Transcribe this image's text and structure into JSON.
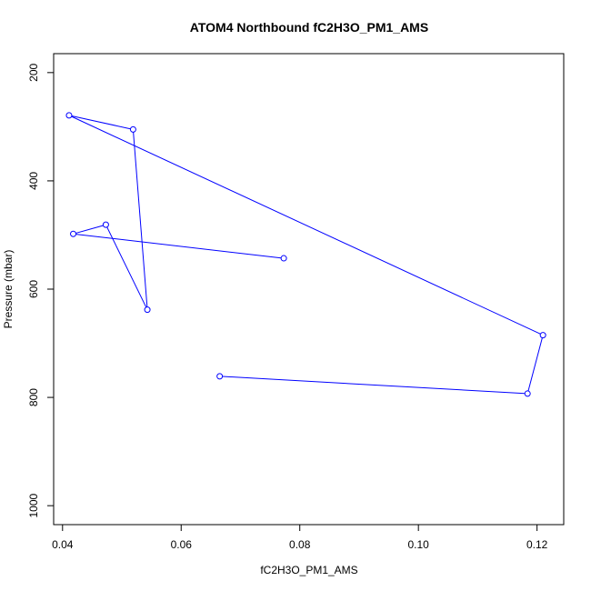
{
  "chart_data": {
    "type": "line",
    "title": "ATOM4 Northbound fC2H3O_PM1_AMS",
    "xlabel": "fC2H3O_PM1_AMS",
    "ylabel": "Pressure (mbar)",
    "xlim": [
      0.0385,
      0.1245
    ],
    "ylim": [
      1035,
      165
    ],
    "y_reversed": true,
    "grid": false,
    "x_ticks": [
      0.04,
      0.06,
      0.08,
      0.1,
      0.12
    ],
    "x_tick_labels": [
      "0.04",
      "0.06",
      "0.08",
      "0.10",
      "0.12"
    ],
    "y_ticks": [
      200,
      400,
      600,
      800,
      1000
    ],
    "y_tick_labels": [
      "200",
      "400",
      "600",
      "800",
      "1000"
    ],
    "color": "#0000ff",
    "series": [
      {
        "x": [
          0.0665,
          0.1184,
          0.121,
          0.0411,
          0.0519,
          0.0543,
          0.0473,
          0.0418,
          0.0773
        ],
        "y": [
          761,
          793,
          685,
          279,
          305,
          638,
          481,
          498,
          543
        ]
      }
    ]
  }
}
